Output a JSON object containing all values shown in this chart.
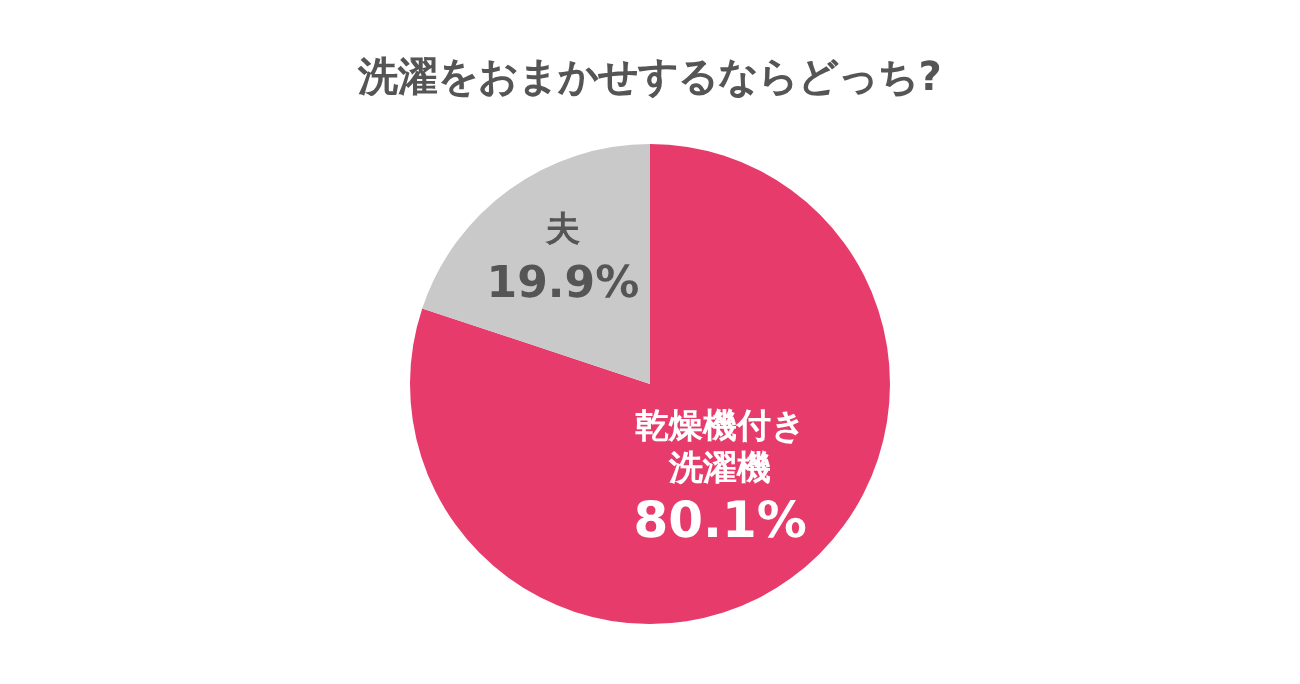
{
  "chart_data": {
    "type": "pie",
    "title": "洗濯をおまかせするならどっち?",
    "categories": [
      "乾燥機付き洗濯機",
      "夫"
    ],
    "values": [
      80.1,
      19.9
    ],
    "colors": [
      "#e73c6b",
      "#c9c9c9"
    ],
    "value_labels": [
      "80.1%",
      "19.9%"
    ],
    "legend": false
  }
}
